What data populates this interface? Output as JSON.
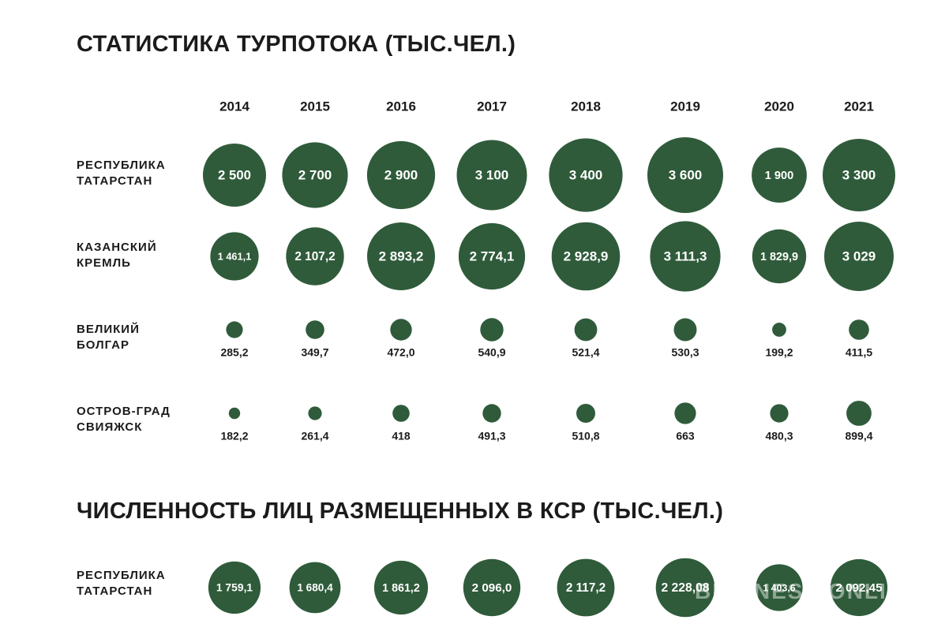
{
  "colors": {
    "bubble": "#2f5b3a",
    "text": "#1b1b1b",
    "bubble_text": "#ffffff"
  },
  "chart_data": [
    {
      "type": "scatter",
      "title": "СТАТИСТИКА ТУРПОТОКА (ТЫС.ЧЕЛ.)",
      "categories": [
        "2014",
        "2015",
        "2016",
        "2017",
        "2018",
        "2019",
        "2020",
        "2021"
      ],
      "series": [
        {
          "name_lines": [
            "РЕСПУБЛИКА",
            "ТАТАРСТАН"
          ],
          "label_position": "inside",
          "values": [
            2500,
            2700,
            2900,
            3100,
            3400,
            3600,
            1900,
            3300
          ],
          "labels": [
            "2 500",
            "2 700",
            "2 900",
            "3 100",
            "3 400",
            "3 600",
            "1 900",
            "3 300"
          ]
        },
        {
          "name_lines": [
            "КАЗАНСКИЙ",
            "КРЕМЛЬ"
          ],
          "label_position": "inside",
          "values": [
            1461.1,
            2107.2,
            2893.2,
            2774.1,
            2928.9,
            3111.3,
            1829.9,
            3029
          ],
          "labels": [
            "1 461,1",
            "2 107,2",
            "2 893,2",
            "2 774,1",
            "2 928,9",
            "3 111,3",
            "1 829,9",
            "3 029"
          ]
        },
        {
          "name_lines": [
            "ВЕЛИКИЙ",
            "БОЛГАР"
          ],
          "label_position": "below",
          "values": [
            285.2,
            349.7,
            472.0,
            540.9,
            521.4,
            530.3,
            199.2,
            411.5
          ],
          "labels": [
            "285,2",
            "349,7",
            "472,0",
            "540,9",
            "521,4",
            "530,3",
            "199,2",
            "411,5"
          ]
        },
        {
          "name_lines": [
            "ОСТРОВ-ГРАД",
            "СВИЯЖСК"
          ],
          "label_position": "below",
          "values": [
            182.2,
            261.4,
            418,
            491.3,
            510.8,
            663,
            480.3,
            899.4
          ],
          "labels": [
            "182,2",
            "261,4",
            "418",
            "491,3",
            "510,8",
            "663",
            "480,3",
            "899,4"
          ]
        }
      ]
    },
    {
      "type": "scatter",
      "title": "ЧИСЛЕННОСТЬ ЛИЦ РАЗМЕЩЕННЫХ В КСР (ТЫС.ЧЕЛ.)",
      "categories": [
        "2014",
        "2015",
        "2016",
        "2017",
        "2018",
        "2019",
        "2020",
        "2021"
      ],
      "series": [
        {
          "name_lines": [
            "РЕСПУБЛИКА",
            "ТАТАРСТАН"
          ],
          "label_position": "inside",
          "values": [
            1759.1,
            1680.4,
            1861.2,
            2096.0,
            2117.2,
            2228.08,
            1403.6,
            2092.45
          ],
          "labels": [
            "1 759,1",
            "1 680,4",
            "1 861,2",
            "2 096,0",
            "2 117,2",
            "2 228,08",
            "1 403,6",
            "2 092,45"
          ]
        }
      ]
    }
  ],
  "watermark": "BUSINESS ONLINE"
}
